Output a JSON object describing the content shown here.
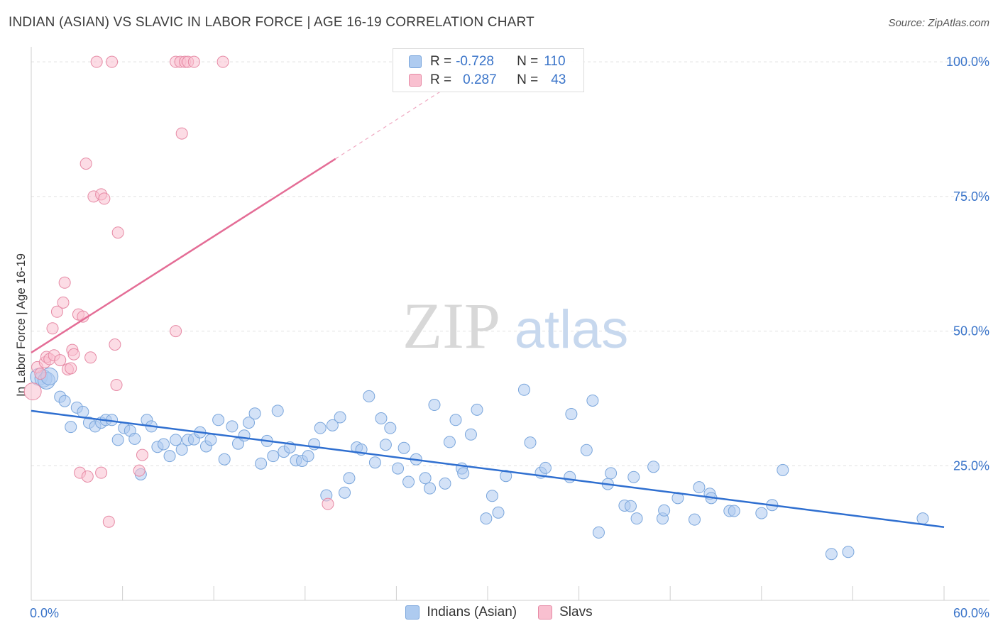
{
  "header": {
    "title": "INDIAN (ASIAN) VS SLAVIC IN LABOR FORCE | AGE 16-19 CORRELATION CHART",
    "source": "Source: ZipAtlas.com"
  },
  "watermark": {
    "part1": "ZIP",
    "part2": "atlas"
  },
  "legend": {
    "rows": [
      {
        "r_label": "R =",
        "r_value": "-0.728",
        "n_label": "N =",
        "n_value": "110",
        "color": "#aecbf0",
        "border": "#7aa6dc"
      },
      {
        "r_label": "R =",
        "r_value": "0.287",
        "n_label": "N =",
        "n_value": "43",
        "color": "#f9c0d0",
        "border": "#e68aa5"
      }
    ]
  },
  "bottom_legend": {
    "items": [
      {
        "label": "Indians (Asian)",
        "color": "#aecbf0",
        "border": "#7aa6dc"
      },
      {
        "label": "Slavs",
        "color": "#f9c0d0",
        "border": "#e68aa5"
      }
    ]
  },
  "chart_data": {
    "type": "scatter",
    "title": "INDIAN (ASIAN) VS SLAVIC IN LABOR FORCE | AGE 16-19 CORRELATION CHART",
    "xlabel": "",
    "ylabel": "In Labor Force | Age 16-19",
    "xlim": [
      0,
      60
    ],
    "ylim": [
      0,
      102
    ],
    "x_tick_labels": [
      "0.0%",
      "60.0%"
    ],
    "y_tick_labels": [
      "25.0%",
      "50.0%",
      "75.0%",
      "100.0%"
    ],
    "y_ticks": [
      25,
      50,
      75,
      100
    ],
    "grid": true,
    "legend_position": "top-center",
    "series": [
      {
        "name": "Indians (Asian)",
        "color": "#7aa6dc",
        "fill": "#aecbf0",
        "trend": {
          "x": [
            0,
            60
          ],
          "y": [
            35.2,
            13.6
          ],
          "color": "#2f6fd0"
        },
        "points": [
          [
            0.5,
            41.5
          ],
          [
            0.8,
            41.2
          ],
          [
            1.0,
            40.8
          ],
          [
            1.2,
            41.6
          ],
          [
            1.9,
            37.8
          ],
          [
            2.2,
            37.0
          ],
          [
            2.6,
            32.2
          ],
          [
            3.0,
            35.8
          ],
          [
            3.4,
            35.0
          ],
          [
            3.8,
            33.0
          ],
          [
            4.2,
            32.3
          ],
          [
            4.6,
            33.0
          ],
          [
            4.9,
            33.5
          ],
          [
            5.3,
            33.5
          ],
          [
            5.7,
            29.8
          ],
          [
            6.1,
            32.0
          ],
          [
            6.5,
            31.5
          ],
          [
            6.8,
            30.0
          ],
          [
            7.2,
            23.4
          ],
          [
            7.6,
            33.5
          ],
          [
            7.9,
            32.3
          ],
          [
            8.3,
            28.5
          ],
          [
            8.7,
            29.0
          ],
          [
            9.1,
            26.8
          ],
          [
            9.5,
            29.8
          ],
          [
            9.9,
            28.0
          ],
          [
            10.3,
            29.8
          ],
          [
            10.7,
            29.9
          ],
          [
            11.1,
            31.2
          ],
          [
            11.5,
            28.6
          ],
          [
            11.8,
            29.8
          ],
          [
            12.3,
            33.5
          ],
          [
            12.7,
            26.2
          ],
          [
            13.2,
            32.3
          ],
          [
            13.6,
            29.1
          ],
          [
            14.0,
            30.6
          ],
          [
            14.3,
            33.0
          ],
          [
            14.7,
            34.7
          ],
          [
            15.1,
            25.4
          ],
          [
            15.5,
            29.6
          ],
          [
            15.9,
            26.8
          ],
          [
            16.2,
            35.2
          ],
          [
            16.6,
            27.6
          ],
          [
            17.0,
            28.4
          ],
          [
            17.4,
            26.0
          ],
          [
            17.8,
            25.9
          ],
          [
            18.2,
            26.8
          ],
          [
            18.6,
            29.0
          ],
          [
            19.0,
            32.0
          ],
          [
            19.4,
            19.5
          ],
          [
            19.8,
            32.5
          ],
          [
            20.3,
            34.0
          ],
          [
            20.6,
            20.0
          ],
          [
            20.9,
            22.7
          ],
          [
            21.4,
            28.4
          ],
          [
            21.7,
            28.0
          ],
          [
            22.2,
            37.9
          ],
          [
            22.6,
            25.6
          ],
          [
            23.0,
            33.8
          ],
          [
            23.3,
            28.9
          ],
          [
            23.6,
            32.0
          ],
          [
            24.1,
            24.5
          ],
          [
            24.5,
            28.3
          ],
          [
            24.8,
            22.0
          ],
          [
            25.3,
            26.2
          ],
          [
            25.9,
            22.7
          ],
          [
            26.2,
            20.8
          ],
          [
            26.5,
            36.3
          ],
          [
            27.2,
            21.7
          ],
          [
            27.5,
            29.4
          ],
          [
            27.9,
            33.5
          ],
          [
            28.3,
            24.5
          ],
          [
            28.4,
            23.6
          ],
          [
            28.9,
            30.8
          ],
          [
            29.3,
            35.4
          ],
          [
            29.9,
            15.2
          ],
          [
            30.3,
            19.4
          ],
          [
            30.7,
            16.3
          ],
          [
            31.2,
            23.1
          ],
          [
            32.4,
            39.1
          ],
          [
            32.8,
            29.3
          ],
          [
            33.5,
            23.7
          ],
          [
            33.8,
            24.6
          ],
          [
            35.4,
            22.9
          ],
          [
            35.5,
            34.6
          ],
          [
            36.5,
            27.9
          ],
          [
            36.9,
            37.1
          ],
          [
            37.3,
            12.6
          ],
          [
            37.9,
            21.6
          ],
          [
            38.1,
            23.6
          ],
          [
            39.0,
            17.6
          ],
          [
            39.4,
            17.5
          ],
          [
            39.6,
            22.9
          ],
          [
            39.8,
            15.2
          ],
          [
            40.9,
            24.8
          ],
          [
            41.5,
            15.2
          ],
          [
            41.6,
            16.7
          ],
          [
            42.5,
            19.0
          ],
          [
            43.6,
            15.0
          ],
          [
            43.9,
            21.0
          ],
          [
            44.6,
            19.8
          ],
          [
            44.7,
            19.0
          ],
          [
            45.9,
            16.6
          ],
          [
            46.2,
            16.6
          ],
          [
            48.0,
            16.2
          ],
          [
            48.7,
            17.7
          ],
          [
            49.4,
            24.2
          ],
          [
            52.6,
            8.6
          ],
          [
            53.7,
            9.0
          ],
          [
            58.6,
            15.2
          ]
        ]
      },
      {
        "name": "Slavs",
        "color": "#e68aa5",
        "fill": "#f9c0d0",
        "trend": {
          "x": [
            0,
            20
          ],
          "y": [
            46.0,
            82.0
          ],
          "dash_to": [
            26.9,
            94.5
          ],
          "color": "#e46d96"
        },
        "points": [
          [
            0.1,
            38.8
          ],
          [
            0.4,
            43.3
          ],
          [
            0.6,
            42.1
          ],
          [
            0.9,
            44.2
          ],
          [
            1.0,
            45.2
          ],
          [
            1.2,
            44.8
          ],
          [
            1.4,
            50.5
          ],
          [
            1.5,
            45.5
          ],
          [
            1.7,
            53.6
          ],
          [
            1.9,
            44.6
          ],
          [
            2.1,
            55.3
          ],
          [
            2.2,
            59.0
          ],
          [
            2.4,
            42.9
          ],
          [
            2.6,
            43.1
          ],
          [
            2.7,
            46.5
          ],
          [
            2.8,
            45.7
          ],
          [
            3.1,
            53.1
          ],
          [
            3.2,
            23.7
          ],
          [
            3.4,
            52.7
          ],
          [
            3.6,
            81.1
          ],
          [
            3.7,
            23.0
          ],
          [
            3.9,
            45.1
          ],
          [
            4.1,
            75.0
          ],
          [
            4.3,
            100.0
          ],
          [
            4.6,
            23.7
          ],
          [
            4.6,
            75.4
          ],
          [
            4.8,
            74.6
          ],
          [
            5.1,
            14.6
          ],
          [
            5.3,
            100.0
          ],
          [
            5.5,
            47.5
          ],
          [
            5.6,
            40.0
          ],
          [
            5.7,
            68.3
          ],
          [
            7.1,
            24.1
          ],
          [
            7.3,
            27.0
          ],
          [
            9.5,
            50.0
          ],
          [
            9.5,
            100.0
          ],
          [
            9.8,
            100.0
          ],
          [
            9.9,
            86.7
          ],
          [
            10.1,
            100.0
          ],
          [
            10.3,
            100.0
          ],
          [
            10.7,
            100.0
          ],
          [
            12.6,
            100.0
          ],
          [
            19.5,
            17.9
          ]
        ]
      }
    ]
  }
}
